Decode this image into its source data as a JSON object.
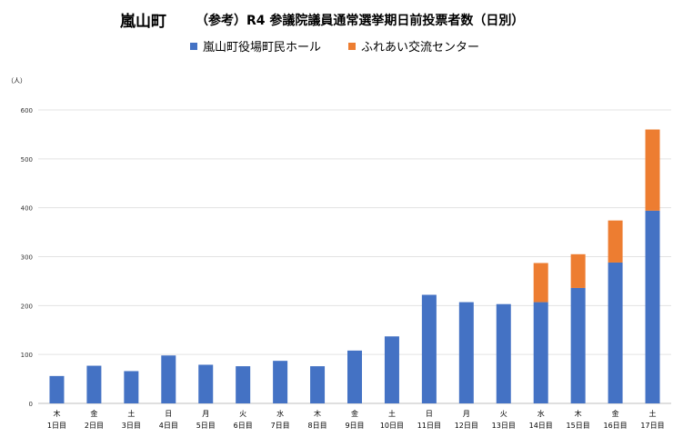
{
  "chart_data": {
    "type": "bar",
    "stacked": true,
    "title": "嵐山町",
    "subtitle": "（参考）R4 参議院議員通常選挙期日前投票者数（日別）",
    "ylabel": "（人）",
    "ylim": [
      0,
      600
    ],
    "yticks": [
      0,
      100,
      200,
      300,
      400,
      500,
      600
    ],
    "grid": true,
    "legend_position": "top",
    "categories": [
      {
        "weekday": "木",
        "day": "1日目"
      },
      {
        "weekday": "金",
        "day": "2日目"
      },
      {
        "weekday": "土",
        "day": "3日目"
      },
      {
        "weekday": "日",
        "day": "4日目"
      },
      {
        "weekday": "月",
        "day": "5日目"
      },
      {
        "weekday": "火",
        "day": "6日目"
      },
      {
        "weekday": "水",
        "day": "7日目"
      },
      {
        "weekday": "木",
        "day": "8日目"
      },
      {
        "weekday": "金",
        "day": "9日目"
      },
      {
        "weekday": "土",
        "day": "10日目"
      },
      {
        "weekday": "日",
        "day": "11日目"
      },
      {
        "weekday": "月",
        "day": "12日目"
      },
      {
        "weekday": "火",
        "day": "13日目"
      },
      {
        "weekday": "水",
        "day": "14日目"
      },
      {
        "weekday": "木",
        "day": "15日目"
      },
      {
        "weekday": "金",
        "day": "16日目"
      },
      {
        "weekday": "土",
        "day": "17日目"
      }
    ],
    "series": [
      {
        "name": "嵐山町役場町民ホール",
        "color": "#4472C4",
        "values": [
          56,
          77,
          66,
          98,
          79,
          76,
          87,
          76,
          108,
          137,
          222,
          207,
          203,
          207,
          236,
          288,
          394
        ]
      },
      {
        "name": "ふれあい交流センター",
        "color": "#ED7D31",
        "values": [
          0,
          0,
          0,
          0,
          0,
          0,
          0,
          0,
          0,
          0,
          0,
          0,
          0,
          80,
          69,
          86,
          166
        ]
      }
    ]
  }
}
